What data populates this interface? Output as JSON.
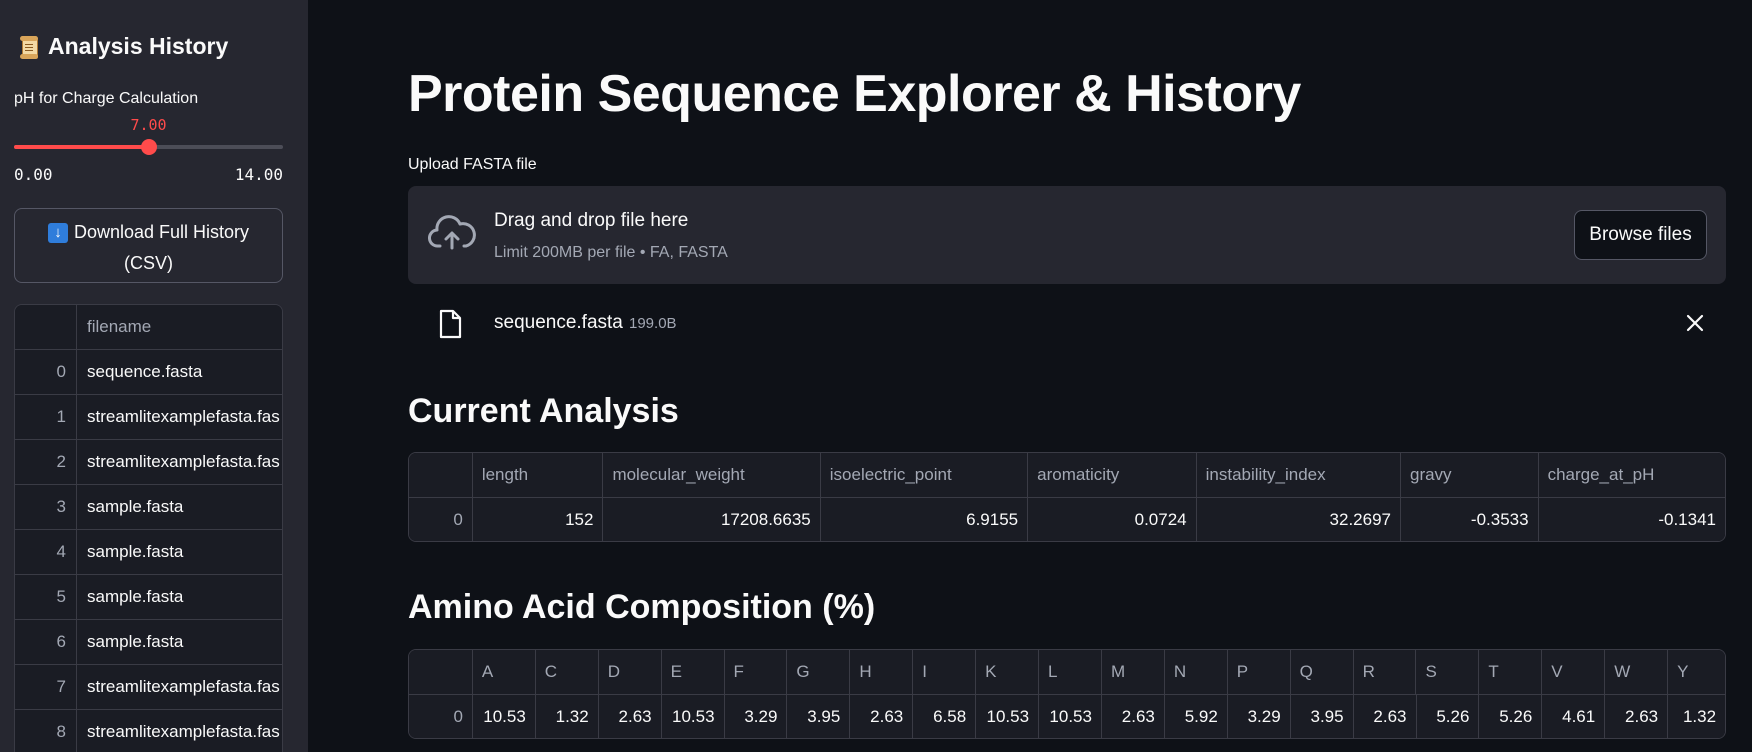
{
  "sidebar": {
    "title": "Analysis History",
    "ph_label": "pH for Charge Calculation",
    "ph_value": "7.00",
    "ph_fraction": 0.5,
    "ph_min": "0.00",
    "ph_max": "14.00",
    "download_label": "Download Full History (CSV)",
    "history_header": "filename",
    "history_rows": [
      {
        "idx": "0",
        "filename": "sequence.fasta"
      },
      {
        "idx": "1",
        "filename": "streamlitexamplefasta.fas"
      },
      {
        "idx": "2",
        "filename": "streamlitexamplefasta.fas"
      },
      {
        "idx": "3",
        "filename": "sample.fasta"
      },
      {
        "idx": "4",
        "filename": "sample.fasta"
      },
      {
        "idx": "5",
        "filename": "sample.fasta"
      },
      {
        "idx": "6",
        "filename": "sample.fasta"
      },
      {
        "idx": "7",
        "filename": "streamlitexamplefasta.fas"
      },
      {
        "idx": "8",
        "filename": "streamlitexamplefasta.fas"
      }
    ]
  },
  "main": {
    "title": "Protein Sequence Explorer & History",
    "upload_label": "Upload FASTA file",
    "dropzone_text": "Drag and drop file here",
    "dropzone_limit": "Limit 200MB per file • FA, FASTA",
    "browse_label": "Browse files",
    "file_name": "sequence.fasta",
    "file_size": "199.0B",
    "current_heading": "Current Analysis",
    "current_columns": [
      "length",
      "molecular_weight",
      "isoelectric_point",
      "aromaticity",
      "instability_index",
      "gravy",
      "charge_at_pH"
    ],
    "current_rows": [
      {
        "idx": "0",
        "values": [
          "152",
          "17208.6635",
          "6.9155",
          "0.0724",
          "32.2697",
          "-0.3533",
          "-0.1341"
        ]
      }
    ],
    "aa_heading": "Amino Acid Composition (%)",
    "aa_columns": [
      "A",
      "C",
      "D",
      "E",
      "F",
      "G",
      "H",
      "I",
      "K",
      "L",
      "M",
      "N",
      "P",
      "Q",
      "R",
      "S",
      "T",
      "V",
      "W",
      "Y"
    ],
    "aa_rows": [
      {
        "idx": "0",
        "values": [
          "10.53",
          "1.32",
          "2.63",
          "10.53",
          "3.29",
          "3.95",
          "2.63",
          "6.58",
          "10.53",
          "10.53",
          "2.63",
          "5.92",
          "3.29",
          "3.95",
          "2.63",
          "5.26",
          "5.26",
          "4.61",
          "2.63",
          "1.32"
        ]
      }
    ]
  }
}
